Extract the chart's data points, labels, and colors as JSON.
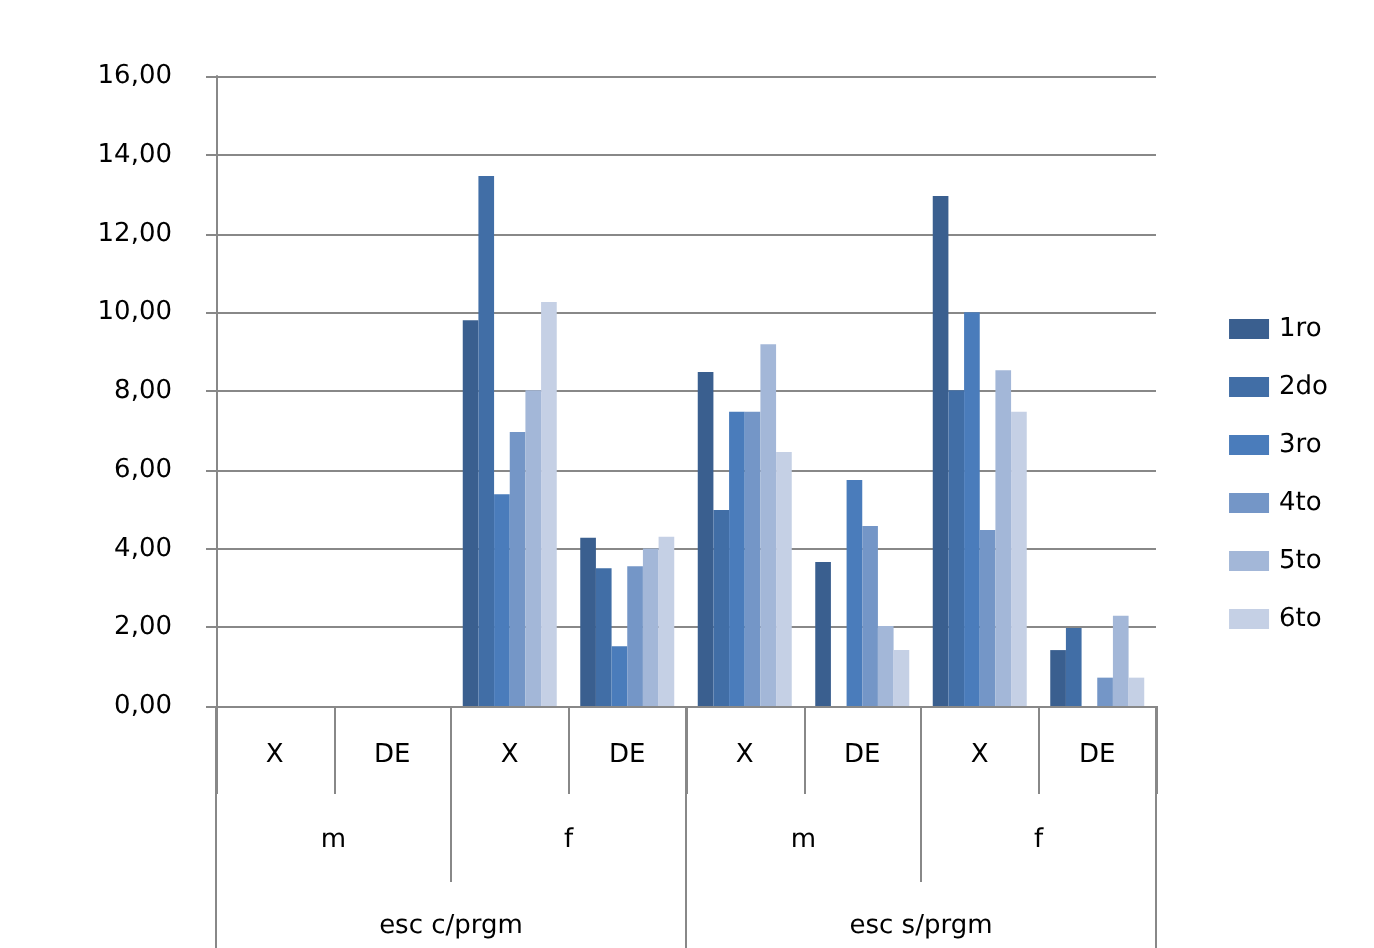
{
  "chart_data": {
    "type": "bar",
    "categories": [
      "X",
      "DE",
      "X",
      "DE",
      "X",
      "DE",
      "X",
      "DE"
    ],
    "series": [
      {
        "name": "1ro",
        "color": "#3a5f8f",
        "values": [
          null,
          null,
          9.8,
          4.27,
          8.48,
          3.66,
          12.95,
          1.42
        ]
      },
      {
        "name": "2do",
        "color": "#416ea6",
        "values": [
          null,
          null,
          13.46,
          3.5,
          4.98,
          null,
          8.02,
          1.98
        ]
      },
      {
        "name": "3ro",
        "color": "#4a7cbb",
        "values": [
          null,
          null,
          5.38,
          1.52,
          7.47,
          5.74,
          10.0,
          null
        ]
      },
      {
        "name": "4to",
        "color": "#7496c7",
        "values": [
          null,
          null,
          6.96,
          3.55,
          7.47,
          4.57,
          4.47,
          0.72
        ]
      },
      {
        "name": "5to",
        "color": "#a3b7d8",
        "values": [
          null,
          null,
          8.02,
          4.0,
          9.19,
          2.03,
          8.53,
          2.29
        ]
      },
      {
        "name": "6to",
        "color": "#c5d0e5",
        "values": [
          null,
          null,
          10.26,
          4.3,
          6.45,
          1.42,
          7.47,
          0.72
        ]
      }
    ],
    "ylim": [
      0,
      16
    ],
    "yticks": [
      {
        "value": 0,
        "label": "0,00"
      },
      {
        "value": 2,
        "label": "2,00"
      },
      {
        "value": 4,
        "label": "4,00"
      },
      {
        "value": 6,
        "label": "6,00"
      },
      {
        "value": 8,
        "label": "8,00"
      },
      {
        "value": 10,
        "label": "10,00"
      },
      {
        "value": 12,
        "label": "12,00"
      },
      {
        "value": 14,
        "label": "14,00"
      },
      {
        "value": 16,
        "label": "16,00"
      }
    ],
    "grid": "y",
    "legend": "right",
    "annotations": [
      "m",
      "f",
      "m",
      "f",
      "esc c/prgm",
      "esc s/prgm"
    ]
  }
}
